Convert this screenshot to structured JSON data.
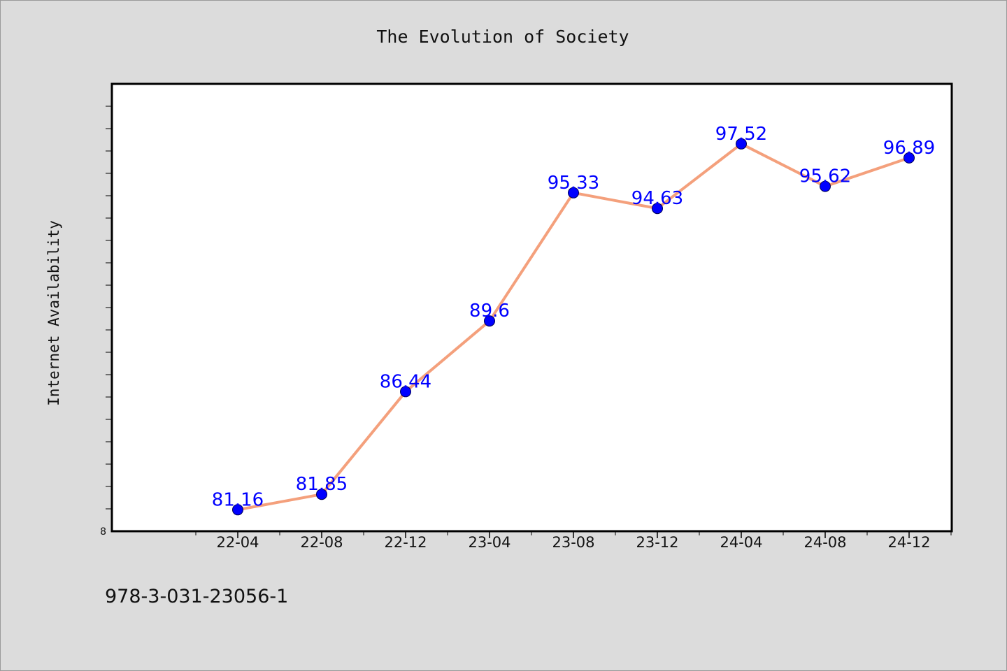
{
  "chart_data": {
    "type": "line",
    "title": "The Evolution of Society",
    "xlabel": "",
    "ylabel": "Internet Availability",
    "categories": [
      "22-04",
      "22-08",
      "22-12",
      "23-04",
      "23-08",
      "23-12",
      "24-04",
      "24-08",
      "24-12"
    ],
    "values": [
      81.16,
      81.85,
      86.44,
      89.6,
      95.33,
      94.63,
      97.52,
      95.62,
      96.89
    ],
    "data_labels": [
      "81.16",
      "81.85",
      "86.44",
      "89.6",
      "95.33",
      "94.63",
      "97.52",
      "95.62",
      "96.89"
    ],
    "y_tick_label": "8",
    "ylim": [
      80.2,
      100.2
    ],
    "grid": false,
    "legend": "none",
    "colors": {
      "line": "#f4a07c",
      "marker": "#0000ff",
      "data_label": "#0000ff",
      "plot_background": "#ffffff",
      "page_background": "#dcdcdc"
    }
  },
  "footer": {
    "isbn": "978-3-031-23056-1"
  }
}
